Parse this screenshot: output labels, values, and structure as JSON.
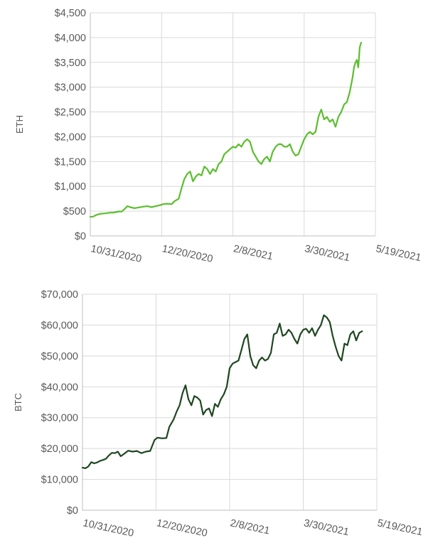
{
  "chart_data": [
    {
      "type": "line",
      "ylabel": "ETH",
      "xlabel": "",
      "title": "",
      "ylim": [
        0,
        4500
      ],
      "xlim": [
        "2020-10-31",
        "2021-05-19"
      ],
      "grid": true,
      "color": "#5BBE2E",
      "yticks": [
        {
          "value": 0,
          "label": "$0"
        },
        {
          "value": 500,
          "label": "$500"
        },
        {
          "value": 1000,
          "label": "$1,000"
        },
        {
          "value": 1500,
          "label": "$1,500"
        },
        {
          "value": 2000,
          "label": "$2,000"
        },
        {
          "value": 2500,
          "label": "$2,500"
        },
        {
          "value": 3000,
          "label": "$3,000"
        },
        {
          "value": 3500,
          "label": "$3,500"
        },
        {
          "value": 4000,
          "label": "$4,000"
        },
        {
          "value": 4500,
          "label": "$4,500"
        }
      ],
      "xticks": [
        {
          "date": "2020-10-31",
          "label": "10/31/2020"
        },
        {
          "date": "2020-12-20",
          "label": "12/20/2020"
        },
        {
          "date": "2021-02-08",
          "label": "2/8/2021"
        },
        {
          "date": "2021-03-30",
          "label": "3/30/2021"
        },
        {
          "date": "2021-05-19",
          "label": "5/19/2021"
        }
      ],
      "series": [
        {
          "x": [
            "2020-10-31",
            "2020-11-02",
            "2020-11-04",
            "2020-11-06",
            "2020-11-08",
            "2020-11-10",
            "2020-11-12",
            "2020-11-14",
            "2020-11-16",
            "2020-11-18",
            "2020-11-20",
            "2020-11-22",
            "2020-11-24",
            "2020-11-26",
            "2020-11-28",
            "2020-12-01",
            "2020-12-04",
            "2020-12-07",
            "2020-12-10",
            "2020-12-13",
            "2020-12-16",
            "2020-12-19",
            "2020-12-21",
            "2020-12-24",
            "2020-12-27",
            "2020-12-29",
            "2021-01-01",
            "2021-01-03",
            "2021-01-05",
            "2021-01-07",
            "2021-01-09",
            "2021-01-11",
            "2021-01-13",
            "2021-01-15",
            "2021-01-17",
            "2021-01-19",
            "2021-01-21",
            "2021-01-23",
            "2021-01-25",
            "2021-01-27",
            "2021-01-29",
            "2021-01-31",
            "2021-02-02",
            "2021-02-04",
            "2021-02-06",
            "2021-02-08",
            "2021-02-10",
            "2021-02-12",
            "2021-02-14",
            "2021-02-16",
            "2021-02-18",
            "2021-02-20",
            "2021-02-22",
            "2021-02-24",
            "2021-02-26",
            "2021-02-28",
            "2021-03-02",
            "2021-03-04",
            "2021-03-06",
            "2021-03-08",
            "2021-03-10",
            "2021-03-12",
            "2021-03-14",
            "2021-03-16",
            "2021-03-18",
            "2021-03-20",
            "2021-03-22",
            "2021-03-24",
            "2021-03-26",
            "2021-03-28",
            "2021-03-30",
            "2021-04-01",
            "2021-04-03",
            "2021-04-05",
            "2021-04-07",
            "2021-04-09",
            "2021-04-11",
            "2021-04-13",
            "2021-04-15",
            "2021-04-17",
            "2021-04-19",
            "2021-04-21",
            "2021-04-23",
            "2021-04-25",
            "2021-04-27",
            "2021-04-29",
            "2021-05-01",
            "2021-05-03",
            "2021-05-04",
            "2021-05-05",
            "2021-05-06",
            "2021-05-07",
            "2021-05-08",
            "2021-05-09"
          ],
          "values": [
            385,
            390,
            420,
            440,
            450,
            455,
            462,
            470,
            470,
            480,
            495,
            490,
            540,
            600,
            580,
            560,
            575,
            590,
            600,
            580,
            600,
            620,
            640,
            650,
            640,
            700,
            750,
            960,
            1150,
            1250,
            1300,
            1100,
            1200,
            1250,
            1220,
            1400,
            1350,
            1250,
            1350,
            1300,
            1450,
            1500,
            1650,
            1700,
            1750,
            1800,
            1780,
            1850,
            1800,
            1900,
            1950,
            1900,
            1700,
            1600,
            1500,
            1450,
            1550,
            1600,
            1500,
            1700,
            1800,
            1850,
            1850,
            1800,
            1800,
            1850,
            1700,
            1620,
            1650,
            1800,
            1950,
            2050,
            2100,
            2050,
            2100,
            2400,
            2550,
            2350,
            2400,
            2300,
            2350,
            2200,
            2400,
            2500,
            2650,
            2700,
            2900,
            3200,
            3400,
            3500,
            3550,
            3400,
            3800,
            3900
          ]
        }
      ]
    },
    {
      "type": "line",
      "ylabel": "BTC",
      "xlabel": "",
      "title": "",
      "ylim": [
        0,
        70000
      ],
      "xlim": [
        "2020-10-31",
        "2021-05-19"
      ],
      "grid": true,
      "color": "#1E4620",
      "yticks": [
        {
          "value": 0,
          "label": "$0"
        },
        {
          "value": 10000,
          "label": "$10,000"
        },
        {
          "value": 20000,
          "label": "$20,000"
        },
        {
          "value": 30000,
          "label": "$30,000"
        },
        {
          "value": 40000,
          "label": "$40,000"
        },
        {
          "value": 50000,
          "label": "$50,000"
        },
        {
          "value": 60000,
          "label": "$60,000"
        },
        {
          "value": 70000,
          "label": "$70,000"
        }
      ],
      "xticks": [
        {
          "date": "2020-10-31",
          "label": "10/31/2020"
        },
        {
          "date": "2020-12-20",
          "label": "12/20/2020"
        },
        {
          "date": "2021-02-08",
          "label": "2/8/2021"
        },
        {
          "date": "2021-03-30",
          "label": "3/30/2021"
        },
        {
          "date": "2021-05-19",
          "label": "5/19/2021"
        }
      ],
      "series": [
        {
          "x": [
            "2020-10-31",
            "2020-11-02",
            "2020-11-04",
            "2020-11-06",
            "2020-11-08",
            "2020-11-10",
            "2020-11-12",
            "2020-11-14",
            "2020-11-16",
            "2020-11-18",
            "2020-11-20",
            "2020-11-22",
            "2020-11-24",
            "2020-11-26",
            "2020-11-28",
            "2020-12-01",
            "2020-12-04",
            "2020-12-07",
            "2020-12-10",
            "2020-12-13",
            "2020-12-16",
            "2020-12-19",
            "2020-12-21",
            "2020-12-24",
            "2020-12-27",
            "2020-12-29",
            "2021-01-01",
            "2021-01-03",
            "2021-01-05",
            "2021-01-07",
            "2021-01-09",
            "2021-01-11",
            "2021-01-13",
            "2021-01-15",
            "2021-01-17",
            "2021-01-19",
            "2021-01-21",
            "2021-01-23",
            "2021-01-25",
            "2021-01-27",
            "2021-01-29",
            "2021-01-31",
            "2021-02-02",
            "2021-02-04",
            "2021-02-06",
            "2021-02-08",
            "2021-02-10",
            "2021-02-12",
            "2021-02-14",
            "2021-02-16",
            "2021-02-18",
            "2021-02-20",
            "2021-02-22",
            "2021-02-24",
            "2021-02-26",
            "2021-02-28",
            "2021-03-02",
            "2021-03-04",
            "2021-03-06",
            "2021-03-08",
            "2021-03-10",
            "2021-03-12",
            "2021-03-14",
            "2021-03-16",
            "2021-03-18",
            "2021-03-20",
            "2021-03-22",
            "2021-03-24",
            "2021-03-26",
            "2021-03-28",
            "2021-03-30",
            "2021-04-01",
            "2021-04-03",
            "2021-04-05",
            "2021-04-07",
            "2021-04-09",
            "2021-04-11",
            "2021-04-13",
            "2021-04-15",
            "2021-04-17",
            "2021-04-19",
            "2021-04-21",
            "2021-04-23",
            "2021-04-25",
            "2021-04-27",
            "2021-04-29",
            "2021-05-01",
            "2021-05-03",
            "2021-05-05",
            "2021-05-07",
            "2021-05-09"
          ],
          "values": [
            13800,
            13600,
            14200,
            15600,
            15200,
            15500,
            16000,
            16300,
            16700,
            17800,
            18600,
            18500,
            19000,
            17500,
            18200,
            19300,
            19000,
            19200,
            18500,
            19000,
            19200,
            22800,
            23500,
            23300,
            23400,
            27000,
            29500,
            32000,
            34000,
            38000,
            40500,
            36000,
            34000,
            37000,
            36500,
            35500,
            31000,
            32500,
            33000,
            30500,
            34500,
            33500,
            36000,
            37500,
            40000,
            46000,
            47500,
            48000,
            48500,
            52000,
            55500,
            57000,
            50000,
            47000,
            46000,
            48500,
            49500,
            48500,
            49000,
            51000,
            57000,
            57500,
            60500,
            56500,
            57000,
            58500,
            57500,
            55500,
            54000,
            57000,
            58500,
            58800,
            57500,
            59000,
            56500,
            58500,
            60000,
            63200,
            62500,
            61000,
            56500,
            53000,
            50000,
            48500,
            54000,
            53500,
            57000,
            58000,
            55000,
            57500,
            58000
          ]
        }
      ]
    }
  ]
}
